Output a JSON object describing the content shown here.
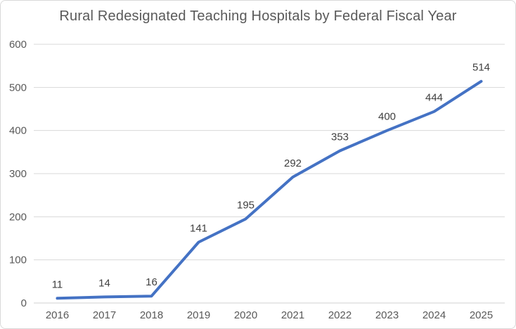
{
  "chart_data": {
    "type": "line",
    "title": "Rural Redesignated Teaching Hospitals by Federal Fiscal Year",
    "categories": [
      "2016",
      "2017",
      "2018",
      "2019",
      "2020",
      "2021",
      "2022",
      "2023",
      "2024",
      "2025"
    ],
    "series": [
      {
        "name": "Rural Redesignated Teaching Hospitals",
        "values": [
          11,
          14,
          16,
          141,
          195,
          292,
          353,
          400,
          444,
          514
        ],
        "color": "#4472C4"
      }
    ],
    "data_labels": [
      "11",
      "14",
      "16",
      "141",
      "195",
      "292",
      "353",
      "400",
      "444",
      "514"
    ],
    "xlabel": "",
    "ylabel": "",
    "ylim": [
      0,
      600
    ],
    "ytick_step": 100,
    "yticks": [
      "0",
      "100",
      "200",
      "300",
      "400",
      "500",
      "600"
    ],
    "grid": true,
    "legend_position": "none"
  }
}
